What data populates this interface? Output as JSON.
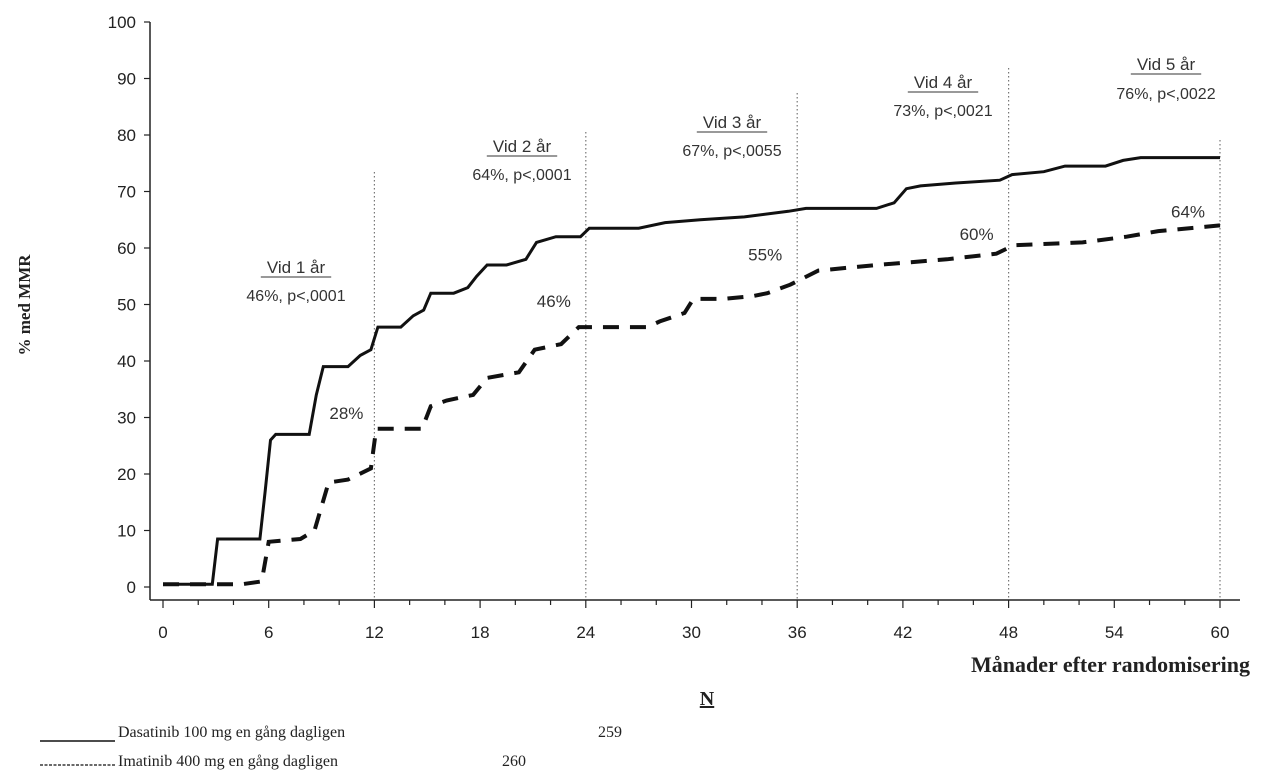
{
  "chart_data": {
    "type": "line",
    "ylabel": "% med MMR",
    "xlabel": "Månader efter randomisering",
    "xlim": [
      0,
      60
    ],
    "ylim": [
      0,
      100
    ],
    "x_ticks": [
      0,
      6,
      12,
      18,
      24,
      30,
      36,
      42,
      48,
      54,
      60
    ],
    "y_ticks": [
      0,
      10,
      20,
      30,
      40,
      50,
      60,
      70,
      80,
      90,
      100
    ],
    "grid": false,
    "vertical_reference_lines": [
      12,
      24,
      36,
      48,
      60
    ],
    "series": [
      {
        "name": "Dasatinib 100 mg en gång dagligen",
        "style": "solid",
        "color": "#111111",
        "points": [
          [
            0,
            0.5
          ],
          [
            2.8,
            0.5
          ],
          [
            3.1,
            8.5
          ],
          [
            5.5,
            8.5
          ],
          [
            5.8,
            17
          ],
          [
            6.1,
            26
          ],
          [
            6.4,
            27
          ],
          [
            8.3,
            27
          ],
          [
            8.7,
            34
          ],
          [
            9.1,
            39
          ],
          [
            10.5,
            39
          ],
          [
            11.2,
            41
          ],
          [
            11.8,
            42
          ],
          [
            12.2,
            46
          ],
          [
            13.5,
            46
          ],
          [
            14.2,
            48
          ],
          [
            14.8,
            49
          ],
          [
            15.2,
            52
          ],
          [
            16.5,
            52
          ],
          [
            17.3,
            53
          ],
          [
            17.8,
            55
          ],
          [
            18.4,
            57
          ],
          [
            19.5,
            57
          ],
          [
            20.6,
            58
          ],
          [
            21.2,
            61
          ],
          [
            22.3,
            62
          ],
          [
            23.7,
            62
          ],
          [
            24.2,
            63.5
          ],
          [
            27,
            63.5
          ],
          [
            28.5,
            64.5
          ],
          [
            30.5,
            65
          ],
          [
            33,
            65.5
          ],
          [
            35.5,
            66.5
          ],
          [
            36.5,
            67
          ],
          [
            40.5,
            67
          ],
          [
            41.5,
            68
          ],
          [
            42.2,
            70.5
          ],
          [
            43,
            71
          ],
          [
            45,
            71.5
          ],
          [
            47.5,
            72
          ],
          [
            48.2,
            73
          ],
          [
            50,
            73.5
          ],
          [
            51.2,
            74.5
          ],
          [
            53.5,
            74.5
          ],
          [
            54.5,
            75.5
          ],
          [
            55.5,
            76
          ],
          [
            60,
            76
          ]
        ]
      },
      {
        "name": "Imatinib 400 mg en gång dagligen",
        "style": "dashed",
        "color": "#111111",
        "points": [
          [
            0,
            0.5
          ],
          [
            4.5,
            0.5
          ],
          [
            5.6,
            1
          ],
          [
            6,
            8
          ],
          [
            7.8,
            8.5
          ],
          [
            8.6,
            10
          ],
          [
            9.4,
            18.5
          ],
          [
            10.5,
            19
          ],
          [
            11.8,
            21
          ],
          [
            12.1,
            28
          ],
          [
            14.7,
            28
          ],
          [
            15.2,
            32
          ],
          [
            16.1,
            33
          ],
          [
            17.6,
            34
          ],
          [
            18.4,
            37
          ],
          [
            20.2,
            38
          ],
          [
            21.1,
            42
          ],
          [
            22.6,
            43
          ],
          [
            23.6,
            46
          ],
          [
            27.5,
            46
          ],
          [
            28.2,
            47
          ],
          [
            29.6,
            48.5
          ],
          [
            30.1,
            51
          ],
          [
            31.8,
            51
          ],
          [
            33.5,
            51.5
          ],
          [
            34.3,
            52
          ],
          [
            35.6,
            53.5
          ],
          [
            37.2,
            56
          ],
          [
            40.5,
            57
          ],
          [
            44.5,
            58
          ],
          [
            47.3,
            59
          ],
          [
            48.3,
            60.5
          ],
          [
            52.2,
            61
          ],
          [
            54.7,
            62
          ],
          [
            56.5,
            63
          ],
          [
            60,
            64
          ]
        ]
      }
    ],
    "annotations": [
      {
        "title": "Vid 1 år",
        "stat": "46%, p<,0001"
      },
      {
        "title": "Vid 2 år",
        "stat": "64%, p<,0001"
      },
      {
        "title": "Vid 3 år",
        "stat": "67%, p<,0055"
      },
      {
        "title": "Vid 4 år",
        "stat": "73%, p<,0021"
      },
      {
        "title": "Vid 5 år",
        "stat": "76%, p<,0022"
      }
    ],
    "imatinib_labels": [
      {
        "x": 12,
        "y": 28,
        "text": "28%"
      },
      {
        "x": 24,
        "y": 46,
        "text": "46%"
      },
      {
        "x": 36,
        "y": 55,
        "text": "55%"
      },
      {
        "x": 48,
        "y": 60,
        "text": "60%"
      },
      {
        "x": 60,
        "y": 64,
        "text": "64%"
      }
    ]
  },
  "legend": {
    "heading": "N",
    "items": [
      {
        "label": "Dasatinib 100 mg en gång dagligen",
        "n": "259",
        "style": "solid"
      },
      {
        "label": "Imatinib 400 mg en gång dagligen",
        "n": "260",
        "style": "dashed"
      }
    ]
  }
}
